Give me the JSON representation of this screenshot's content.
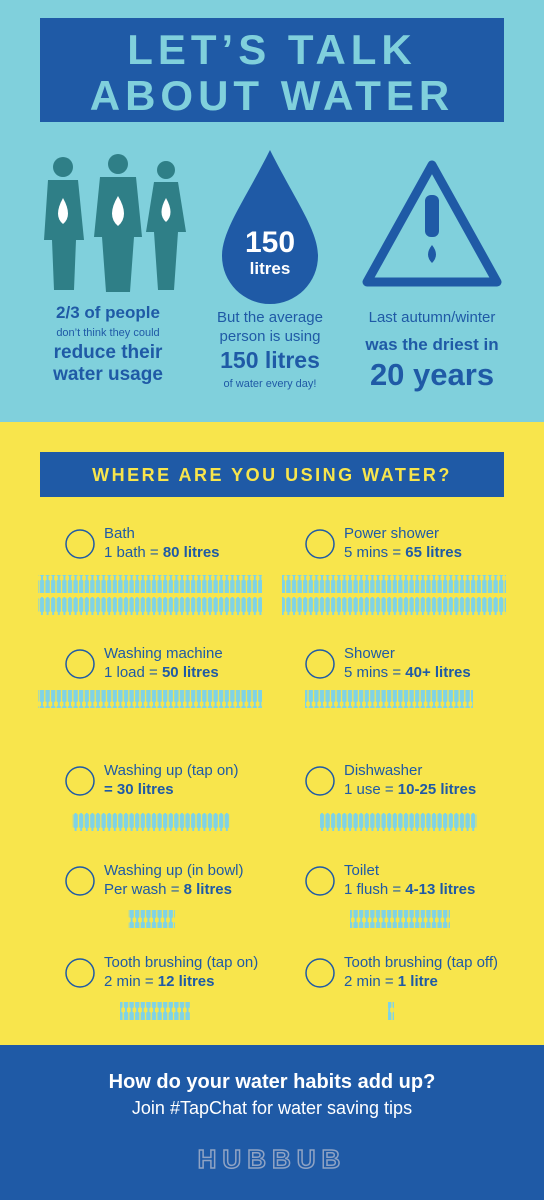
{
  "header": {
    "title_lines": [
      "LET’S TALK",
      "ABOUT WATER"
    ]
  },
  "stats": [
    {
      "lines": [
        "2/3 of people",
        "don’t think they could",
        "reduce their",
        "water usage"
      ]
    },
    {
      "drop": [
        "150",
        "litres"
      ],
      "lines": [
        "But the average",
        "person is using",
        "150 litres",
        "of water every day!"
      ]
    },
    {
      "lines": [
        "Last autumn/winter",
        "was the driest in",
        "20 years"
      ]
    }
  ],
  "section_title": "WHERE ARE YOU USING WATER?",
  "items": [
    {
      "name": "Bath",
      "prefix": "1 bath = ",
      "amount": "80 litres"
    },
    {
      "name": "Power shower",
      "prefix": "5 mins = ",
      "amount": "65 litres"
    },
    {
      "name": "Washing machine",
      "prefix": "1 load = ",
      "amount": "50 litres"
    },
    {
      "name": "Shower",
      "prefix": "5 mins = ",
      "amount": "40+ litres"
    },
    {
      "name": "Washing up (tap on)",
      "amount": "= 30 litres"
    },
    {
      "name": "Dishwasher",
      "prefix": "1 use = ",
      "amount": "10-25 litres"
    },
    {
      "name": "Washing up (in bowl)",
      "prefix": "Per wash = ",
      "amount": "8 litres"
    },
    {
      "name": "Toilet",
      "prefix": "1 flush = ",
      "amount": "4-13 litres"
    },
    {
      "name": "Tooth brushing (tap on)",
      "prefix": "2 min = ",
      "amount": "12 litres"
    },
    {
      "name": "Tooth brushing (tap off)",
      "prefix": "2 min = ",
      "amount": "1 litre"
    }
  ],
  "footer": {
    "question": "How do your water habits add up?",
    "cta": "Join #TapChat for water saving tips",
    "logo": "HUBBUB"
  }
}
